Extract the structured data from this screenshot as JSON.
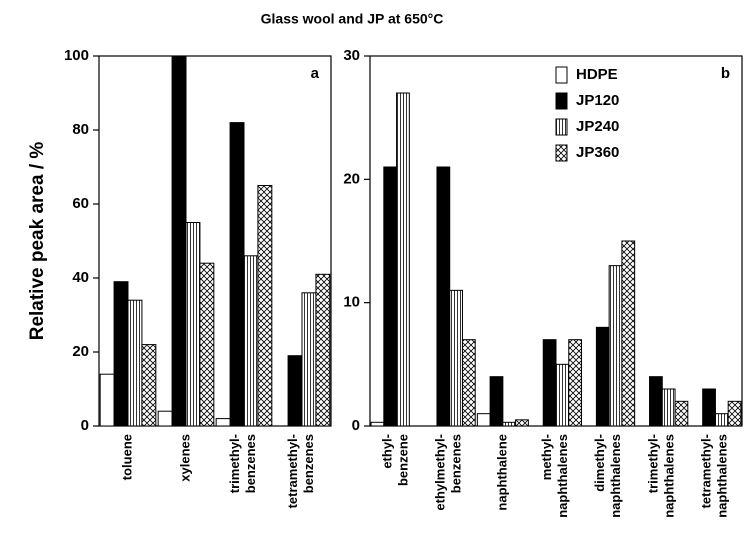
{
  "chart_data": [
    {
      "type": "bar",
      "title": "Glass wool and JP at 650°C",
      "ylabel": "Relative peak area / %",
      "panel_label": "a",
      "categories": [
        "toluene",
        "xylenes",
        "trimethyl-benzenes",
        "tetramethyl-benzenes"
      ],
      "series": [
        {
          "name": "HDPE",
          "color": "#ffffff",
          "pattern": "none",
          "values": [
            14,
            4,
            2,
            null
          ]
        },
        {
          "name": "JP120",
          "color": "#000000",
          "pattern": "none",
          "values": [
            39,
            100,
            82,
            19
          ]
        },
        {
          "name": "JP240",
          "color": "#ffffff",
          "pattern": "vertical",
          "values": [
            34,
            55,
            46,
            36
          ]
        },
        {
          "name": "JP360",
          "color": "#ffffff",
          "pattern": "crosshatch",
          "values": [
            22,
            44,
            65,
            41
          ]
        }
      ],
      "ylim": [
        0,
        100
      ],
      "yticks": [
        0,
        20,
        40,
        60,
        80,
        100
      ]
    },
    {
      "type": "bar",
      "panel_label": "b",
      "legend": "upper right",
      "categories": [
        "ethyl-benzene",
        "ethylmethyl-benzenes",
        "naphthalene",
        "methyl-naphthalenes",
        "dimethyl-naphthalenes",
        "trimethyl-naphthalenes",
        "tetramethyl-naphthalenes"
      ],
      "series": [
        {
          "name": "HDPE",
          "color": "#ffffff",
          "pattern": "none",
          "values": [
            0.3,
            null,
            1,
            null,
            null,
            null,
            null
          ]
        },
        {
          "name": "JP120",
          "color": "#000000",
          "pattern": "none",
          "values": [
            21,
            21,
            4,
            7,
            8,
            4,
            3
          ]
        },
        {
          "name": "JP240",
          "color": "#ffffff",
          "pattern": "vertical",
          "values": [
            27,
            11,
            0.3,
            5,
            13,
            3,
            1
          ]
        },
        {
          "name": "JP360",
          "color": "#ffffff",
          "pattern": "crosshatch",
          "values": [
            null,
            7,
            0.5,
            7,
            15,
            2,
            2
          ]
        }
      ],
      "ylim": [
        0,
        30
      ],
      "yticks": [
        0,
        10,
        20,
        30
      ]
    }
  ]
}
